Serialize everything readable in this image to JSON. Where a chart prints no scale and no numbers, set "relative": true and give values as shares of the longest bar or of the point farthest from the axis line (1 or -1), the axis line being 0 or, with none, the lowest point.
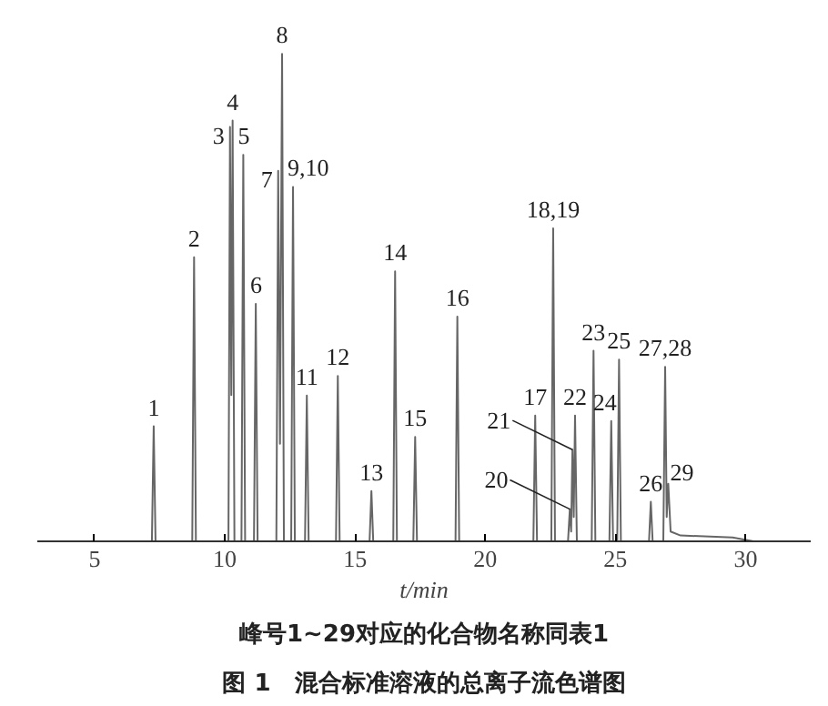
{
  "chart_data": {
    "type": "line",
    "relative": true,
    "title": "图 1　混合标准溶液的总离子流色谱图",
    "subtitle": "峰号1~29对应的化合物名称同表1",
    "xlabel": "t/min",
    "xlim": [
      2.8,
      32.5
    ],
    "xticks": [
      5,
      10,
      15,
      20,
      25,
      30
    ],
    "grid": false,
    "marker": "none",
    "line_style": "solid",
    "series": [
      {
        "color": "#666666",
        "x": [
          4,
          7.2,
          7.27,
          7.34,
          8.75,
          8.82,
          8.89,
          10.14,
          10.2,
          10.25,
          10.3,
          10.37,
          10.64,
          10.71,
          10.78,
          11.12,
          11.19,
          11.26,
          11.98,
          12.05,
          12.12,
          12.2,
          12.27,
          12.55,
          12.62,
          12.69,
          13.08,
          13.15,
          13.22,
          14.27,
          14.34,
          14.41,
          15.56,
          15.63,
          15.7,
          16.47,
          16.54,
          16.61,
          17.24,
          17.31,
          17.38,
          18.86,
          18.93,
          19.0,
          21.85,
          21.92,
          21.99,
          22.54,
          22.61,
          22.68,
          23.18,
          23.25,
          23.3,
          23.35,
          23.4,
          23.45,
          23.52,
          24.09,
          24.16,
          24.23,
          24.77,
          24.84,
          24.91,
          25.07,
          25.14,
          25.21,
          26.29,
          26.36,
          26.43,
          26.84,
          26.91,
          26.97,
          27.03,
          27.12,
          27.5,
          29.5,
          30.3
        ],
        "values": [
          0,
          0,
          0.236,
          0,
          0,
          0.583,
          0,
          0,
          0.85,
          0.3,
          0.863,
          0,
          0,
          0.793,
          0,
          0,
          0.487,
          0,
          0,
          0.76,
          0.2,
          1.0,
          0,
          0,
          0.727,
          0,
          0,
          0.299,
          0,
          0,
          0.339,
          0,
          0,
          0.103,
          0,
          0,
          0.554,
          0,
          0,
          0.214,
          0,
          0,
          0.461,
          0,
          0,
          0.258,
          0,
          0,
          0.642,
          0,
          0,
          0.066,
          0.02,
          0.188,
          0.05,
          0.258,
          0,
          0,
          0.391,
          0,
          0,
          0.247,
          0,
          0,
          0.373,
          0,
          0,
          0.081,
          0,
          0,
          0.358,
          0.05,
          0.118,
          0.02,
          0.012,
          0.008,
          0
        ]
      }
    ],
    "annotations": [
      {
        "text": "1",
        "x": 7.27,
        "y": 0.236
      },
      {
        "text": "2",
        "x": 8.82,
        "y": 0.583
      },
      {
        "text": "3",
        "x": 10.2,
        "y": 0.85
      },
      {
        "text": "4",
        "x": 10.3,
        "y": 0.863
      },
      {
        "text": "5",
        "x": 10.71,
        "y": 0.793
      },
      {
        "text": "6",
        "x": 11.19,
        "y": 0.487
      },
      {
        "text": "7",
        "x": 12.05,
        "y": 0.76
      },
      {
        "text": "8",
        "x": 12.2,
        "y": 1.0
      },
      {
        "text": "9,10",
        "x": 12.62,
        "y": 0.727
      },
      {
        "text": "11",
        "x": 13.15,
        "y": 0.299
      },
      {
        "text": "12",
        "x": 14.34,
        "y": 0.339
      },
      {
        "text": "13",
        "x": 15.63,
        "y": 0.103
      },
      {
        "text": "14",
        "x": 16.54,
        "y": 0.554
      },
      {
        "text": "15",
        "x": 17.31,
        "y": 0.214
      },
      {
        "text": "16",
        "x": 18.93,
        "y": 0.461
      },
      {
        "text": "17",
        "x": 21.92,
        "y": 0.258
      },
      {
        "text": "18,19",
        "x": 22.61,
        "y": 0.642
      },
      {
        "text": "20",
        "x": 23.25,
        "y": 0.066
      },
      {
        "text": "21",
        "x": 23.35,
        "y": 0.188
      },
      {
        "text": "22",
        "x": 23.45,
        "y": 0.258
      },
      {
        "text": "23",
        "x": 24.16,
        "y": 0.391
      },
      {
        "text": "24",
        "x": 24.84,
        "y": 0.247
      },
      {
        "text": "25",
        "x": 25.14,
        "y": 0.373
      },
      {
        "text": "26",
        "x": 26.36,
        "y": 0.081
      },
      {
        "text": "27,28",
        "x": 26.91,
        "y": 0.358
      },
      {
        "text": "29",
        "x": 27.03,
        "y": 0.118
      }
    ]
  }
}
